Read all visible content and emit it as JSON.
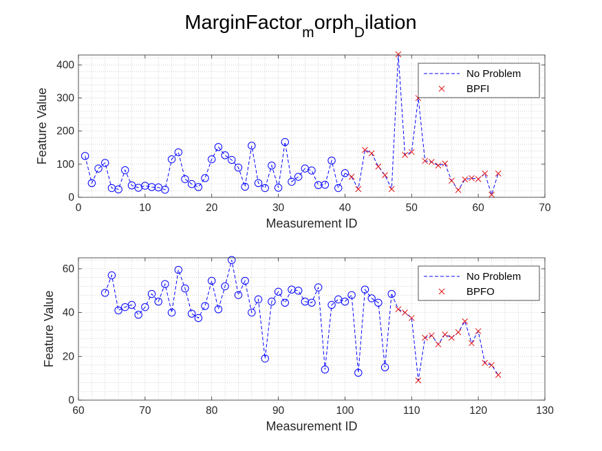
{
  "figure": {
    "title_main": "MarginFactor",
    "title_sub1": "m",
    "title_mid": "orph",
    "title_sub2": "D",
    "title_end": "ilation"
  },
  "colors": {
    "no_problem": "#0000ff",
    "fault": "#e01010",
    "axes": "#262626",
    "grid": "#b0b0b0"
  },
  "chart_data": [
    {
      "type": "line",
      "xlabel": "Measurement ID",
      "ylabel": "Feature Value",
      "xlim": [
        0,
        70
      ],
      "ylim": [
        0,
        430
      ],
      "xticks": [
        0,
        10,
        20,
        30,
        40,
        50,
        60,
        70
      ],
      "yticks": [
        0,
        100,
        200,
        300,
        400
      ],
      "grid": "minor-dotted",
      "legend_position": "top-right",
      "legend": [
        "No Problem",
        "BPFI"
      ],
      "series": [
        {
          "name": "No Problem",
          "marker": "circle",
          "line": "dashed",
          "x": [
            1,
            2,
            3,
            4,
            5,
            6,
            7,
            8,
            9,
            10,
            11,
            12,
            13,
            14,
            15,
            16,
            17,
            18,
            19,
            20,
            21,
            22,
            23,
            24,
            25,
            26,
            27,
            28,
            29,
            30,
            31,
            32,
            33,
            34,
            35,
            36,
            37,
            38,
            39,
            40
          ],
          "y": [
            125,
            43,
            87,
            104,
            28,
            24,
            82,
            36,
            29,
            35,
            31,
            30,
            23,
            115,
            136,
            55,
            40,
            31,
            58,
            115,
            152,
            127,
            113,
            90,
            32,
            156,
            43,
            28,
            96,
            29,
            167,
            47,
            62,
            87,
            81,
            37,
            38,
            111,
            28,
            73
          ]
        },
        {
          "name": "BPFI",
          "marker": "x",
          "line": "dashed",
          "x": [
            41,
            42,
            43,
            44,
            45,
            46,
            47,
            48,
            49,
            50,
            51,
            52,
            53,
            54,
            55,
            56,
            57,
            58,
            59,
            60,
            61,
            62,
            63
          ],
          "y": [
            62,
            25,
            143,
            133,
            93,
            67,
            25,
            432,
            128,
            137,
            300,
            110,
            107,
            96,
            102,
            50,
            22,
            54,
            58,
            55,
            72,
            8,
            72
          ]
        }
      ]
    },
    {
      "type": "line",
      "xlabel": "Measurement ID",
      "ylabel": "Feature Value",
      "xlim": [
        60,
        130
      ],
      "ylim": [
        0,
        65
      ],
      "xticks": [
        60,
        70,
        80,
        90,
        100,
        110,
        120,
        130
      ],
      "yticks": [
        0,
        20,
        40,
        60
      ],
      "grid": "minor-dotted",
      "legend_position": "top-right",
      "legend": [
        "No Problem",
        "BPFO"
      ],
      "series": [
        {
          "name": "No Problem",
          "marker": "circle",
          "line": "dashed",
          "x": [
            64,
            65,
            66,
            67,
            68,
            69,
            70,
            71,
            72,
            73,
            74,
            75,
            76,
            77,
            78,
            79,
            80,
            81,
            82,
            83,
            84,
            85,
            86,
            87,
            88,
            89,
            90,
            91,
            92,
            93,
            94,
            95,
            96,
            97,
            98,
            99,
            100,
            101,
            102,
            103,
            104,
            105,
            106,
            107
          ],
          "y": [
            49,
            57,
            41,
            42.5,
            43.5,
            39,
            42.5,
            48.5,
            45,
            53,
            40,
            59.5,
            51,
            39.5,
            37.5,
            43,
            54.5,
            41.5,
            52,
            64,
            48,
            54.5,
            40,
            46,
            19,
            45,
            49.5,
            44.5,
            50.5,
            50,
            45,
            44.5,
            51.5,
            14,
            43.5,
            46,
            45,
            48,
            12.5,
            50.5,
            46.5,
            44.5,
            15,
            48.5
          ]
        },
        {
          "name": "BPFO",
          "marker": "x",
          "line": "dashed",
          "x": [
            108,
            109,
            110,
            111,
            112,
            113,
            114,
            115,
            116,
            117,
            118,
            119,
            120,
            121,
            122,
            123
          ],
          "y": [
            41.5,
            40,
            37.5,
            9,
            28.5,
            29.5,
            25.5,
            30,
            28.5,
            31,
            36,
            26,
            31.5,
            17,
            16,
            11.5
          ]
        }
      ]
    }
  ]
}
